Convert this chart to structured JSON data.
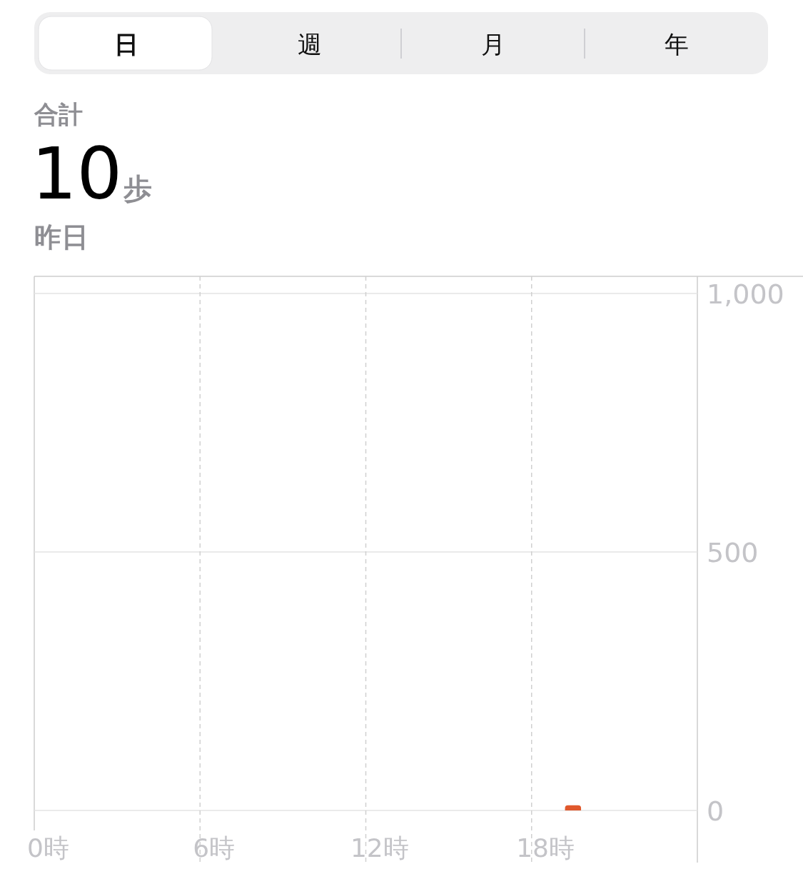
{
  "chart_data": {
    "type": "bar",
    "title": "合計",
    "subtitle": "昨日",
    "annotations": [
      "日",
      "週",
      "月",
      "年",
      "10",
      "歩"
    ],
    "categories": [
      "0時",
      null,
      null,
      null,
      null,
      null,
      "6時",
      null,
      null,
      null,
      null,
      null,
      "12時",
      null,
      null,
      null,
      null,
      null,
      "18時",
      null,
      null,
      null,
      null,
      null
    ],
    "values": [
      null,
      null,
      null,
      null,
      null,
      null,
      null,
      null,
      null,
      null,
      null,
      null,
      null,
      null,
      null,
      null,
      null,
      null,
      null,
      10,
      null,
      null,
      null,
      null
    ],
    "color": "#e0582c",
    "ylim": [
      0,
      1033
    ],
    "yticks": [
      0,
      {
        "value": 500,
        "label": "500"
      },
      {
        "value": 1000,
        "label": "1,000"
      }
    ],
    "grid": true
  }
}
